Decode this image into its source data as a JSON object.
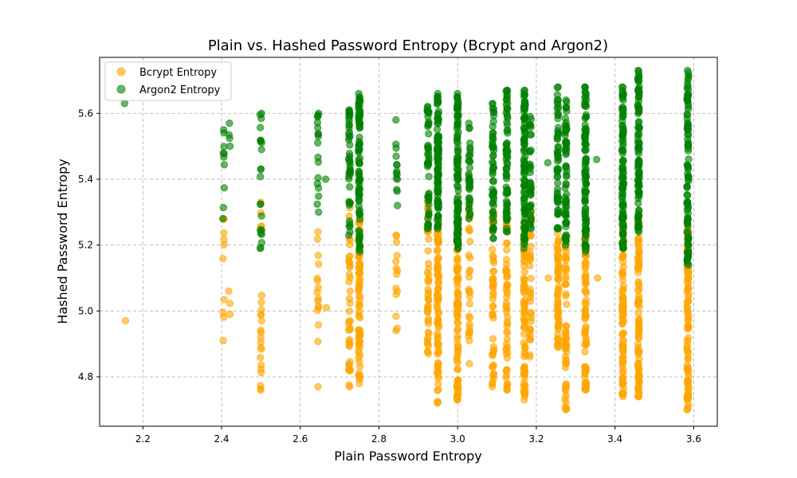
{
  "chart_data": {
    "type": "scatter",
    "title": "Plain vs. Hashed Password Entropy (Bcrypt and Argon2)",
    "xlabel": "Plain Password Entropy",
    "ylabel": "Hashed Password Entropy",
    "xlim": [
      2.09,
      3.66
    ],
    "ylim": [
      4.65,
      5.77
    ],
    "xticks": [
      2.2,
      2.4,
      2.6,
      2.8,
      3.0,
      3.2,
      3.4,
      3.6
    ],
    "yticks": [
      4.8,
      5.0,
      5.2,
      5.4,
      5.6
    ],
    "grid": true,
    "legend_position": "upper-left",
    "series": [
      {
        "name": "Bcrypt Entropy",
        "color": "#FFA500",
        "alpha": 0.6,
        "clusters": [
          {
            "x": 2.155,
            "ymin": 4.97,
            "ymax": 4.97,
            "n": 1
          },
          {
            "x": 2.405,
            "ymin": 4.91,
            "ymax": 5.28,
            "n": 10
          },
          {
            "x": 2.42,
            "ymin": 4.99,
            "ymax": 5.06,
            "n": 3
          },
          {
            "x": 2.5,
            "ymin": 4.76,
            "ymax": 5.33,
            "n": 24
          },
          {
            "x": 2.645,
            "ymin": 4.77,
            "ymax": 5.24,
            "n": 16
          },
          {
            "x": 2.665,
            "ymin": 5.01,
            "ymax": 5.01,
            "n": 1
          },
          {
            "x": 2.725,
            "ymin": 4.77,
            "ymax": 5.33,
            "n": 40
          },
          {
            "x": 2.75,
            "ymin": 4.78,
            "ymax": 5.28,
            "n": 80
          },
          {
            "x": 2.845,
            "ymin": 4.94,
            "ymax": 5.23,
            "n": 14
          },
          {
            "x": 2.925,
            "ymin": 4.87,
            "ymax": 5.33,
            "n": 45
          },
          {
            "x": 2.95,
            "ymin": 4.72,
            "ymax": 5.27,
            "n": 90
          },
          {
            "x": 3.0,
            "ymin": 4.73,
            "ymax": 5.27,
            "n": 90
          },
          {
            "x": 3.03,
            "ymin": 4.84,
            "ymax": 5.32,
            "n": 30
          },
          {
            "x": 3.09,
            "ymin": 4.77,
            "ymax": 5.3,
            "n": 50
          },
          {
            "x": 3.125,
            "ymin": 4.76,
            "ymax": 5.3,
            "n": 60
          },
          {
            "x": 3.17,
            "ymin": 4.73,
            "ymax": 5.27,
            "n": 90
          },
          {
            "x": 3.185,
            "ymin": 4.86,
            "ymax": 5.3,
            "n": 35
          },
          {
            "x": 3.23,
            "ymin": 5.1,
            "ymax": 5.1,
            "n": 1
          },
          {
            "x": 3.255,
            "ymin": 4.89,
            "ymax": 5.25,
            "n": 60
          },
          {
            "x": 3.275,
            "ymin": 4.7,
            "ymax": 5.27,
            "n": 60
          },
          {
            "x": 3.325,
            "ymin": 4.76,
            "ymax": 5.25,
            "n": 90
          },
          {
            "x": 3.355,
            "ymin": 5.1,
            "ymax": 5.1,
            "n": 1
          },
          {
            "x": 3.42,
            "ymin": 4.74,
            "ymax": 5.25,
            "n": 90
          },
          {
            "x": 3.46,
            "ymin": 4.74,
            "ymax": 5.27,
            "n": 90
          },
          {
            "x": 3.585,
            "ymin": 4.7,
            "ymax": 5.25,
            "n": 95
          }
        ]
      },
      {
        "name": "Argon2 Entropy",
        "color": "#008000",
        "alpha": 0.6,
        "clusters": [
          {
            "x": 2.155,
            "ymin": 5.63,
            "ymax": 5.63,
            "n": 1
          },
          {
            "x": 2.405,
            "ymin": 5.28,
            "ymax": 5.55,
            "n": 10
          },
          {
            "x": 2.42,
            "ymin": 5.5,
            "ymax": 5.57,
            "n": 4
          },
          {
            "x": 2.5,
            "ymin": 5.19,
            "ymax": 5.6,
            "n": 22
          },
          {
            "x": 2.645,
            "ymin": 5.3,
            "ymax": 5.6,
            "n": 18
          },
          {
            "x": 2.665,
            "ymin": 5.4,
            "ymax": 5.4,
            "n": 1
          },
          {
            "x": 2.725,
            "ymin": 5.23,
            "ymax": 5.61,
            "n": 45
          },
          {
            "x": 2.75,
            "ymin": 5.18,
            "ymax": 5.66,
            "n": 90
          },
          {
            "x": 2.845,
            "ymin": 5.32,
            "ymax": 5.58,
            "n": 14
          },
          {
            "x": 2.925,
            "ymin": 5.25,
            "ymax": 5.62,
            "n": 50
          },
          {
            "x": 2.95,
            "ymin": 5.25,
            "ymax": 5.66,
            "n": 100
          },
          {
            "x": 3.0,
            "ymin": 5.19,
            "ymax": 5.66,
            "n": 100
          },
          {
            "x": 3.03,
            "ymin": 5.28,
            "ymax": 5.57,
            "n": 35
          },
          {
            "x": 3.09,
            "ymin": 5.22,
            "ymax": 5.63,
            "n": 55
          },
          {
            "x": 3.125,
            "ymin": 5.24,
            "ymax": 5.67,
            "n": 70
          },
          {
            "x": 3.17,
            "ymin": 5.19,
            "ymax": 5.67,
            "n": 100
          },
          {
            "x": 3.185,
            "ymin": 5.25,
            "ymax": 5.59,
            "n": 40
          },
          {
            "x": 3.23,
            "ymin": 5.45,
            "ymax": 5.45,
            "n": 1
          },
          {
            "x": 3.255,
            "ymin": 5.25,
            "ymax": 5.68,
            "n": 60
          },
          {
            "x": 3.275,
            "ymin": 5.2,
            "ymax": 5.64,
            "n": 65
          },
          {
            "x": 3.325,
            "ymin": 5.18,
            "ymax": 5.68,
            "n": 100
          },
          {
            "x": 3.355,
            "ymin": 5.46,
            "ymax": 5.46,
            "n": 1
          },
          {
            "x": 3.42,
            "ymin": 5.19,
            "ymax": 5.68,
            "n": 100
          },
          {
            "x": 3.46,
            "ymin": 5.24,
            "ymax": 5.73,
            "n": 100
          },
          {
            "x": 3.585,
            "ymin": 5.14,
            "ymax": 5.73,
            "n": 100
          }
        ]
      }
    ]
  }
}
